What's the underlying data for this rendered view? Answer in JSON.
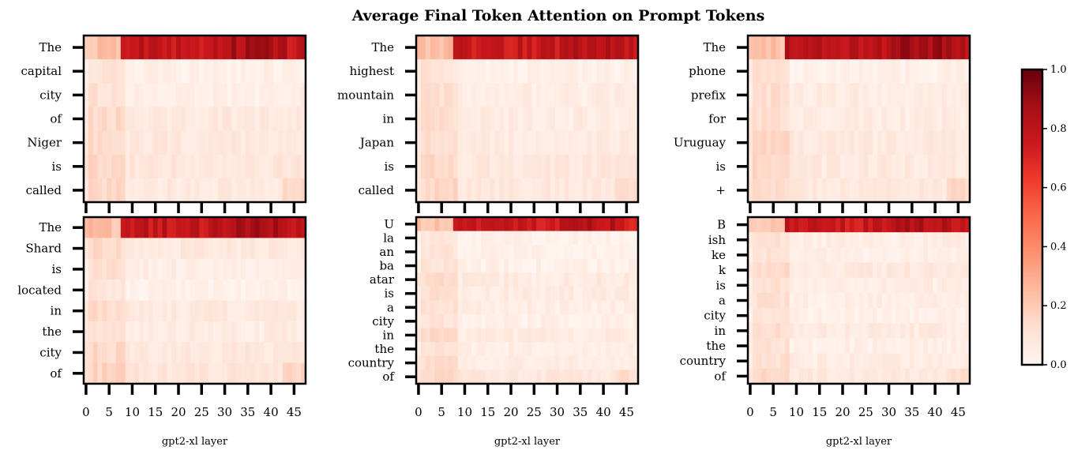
{
  "title": "Average Final Token Attention on Prompt Tokens",
  "colormap": {
    "name": "Reds",
    "stops": [
      "#fff5f0",
      "#fee0d2",
      "#fcbba1",
      "#fc9272",
      "#fb6a4a",
      "#ef3b2c",
      "#cb181d",
      "#a50f15",
      "#67000d"
    ]
  },
  "colorbar": {
    "range": [
      0.0,
      1.0
    ],
    "ticks": [
      "0.0",
      "0.2",
      "0.4",
      "0.6",
      "0.8",
      "1.0"
    ]
  },
  "chart_data": [
    {
      "type": "heatmap",
      "tokens": [
        "The",
        "capital",
        "city",
        "of",
        "Niger",
        "is",
        "called"
      ],
      "x_ticks": [
        "0",
        "5",
        "10",
        "15",
        "20",
        "25",
        "30",
        "35",
        "40",
        "45"
      ],
      "xlabel": "",
      "n_layers": 48,
      "row_means": [
        0.78,
        0.04,
        0.05,
        0.09,
        0.1,
        0.11,
        0.09
      ]
    },
    {
      "type": "heatmap",
      "tokens": [
        "The",
        "highest",
        "mountain",
        "in",
        "Japan",
        "is",
        "called"
      ],
      "x_ticks": [
        "0",
        "5",
        "10",
        "15",
        "20",
        "25",
        "30",
        "35",
        "40",
        "45"
      ],
      "xlabel": "",
      "n_layers": 48,
      "row_means": [
        0.76,
        0.04,
        0.06,
        0.07,
        0.08,
        0.1,
        0.1
      ]
    },
    {
      "type": "heatmap",
      "tokens": [
        "The",
        "phone",
        "prefix",
        "for",
        "Uruguay",
        "is",
        "+"
      ],
      "x_ticks": [
        "0",
        "5",
        "10",
        "15",
        "20",
        "25",
        "30",
        "35",
        "40",
        "45"
      ],
      "xlabel": "",
      "n_layers": 48,
      "row_means": [
        0.8,
        0.04,
        0.07,
        0.07,
        0.09,
        0.09,
        0.1
      ]
    },
    {
      "type": "heatmap",
      "tokens": [
        "The",
        "Shard",
        "is",
        "located",
        "in",
        "the",
        "city",
        "of"
      ],
      "x_ticks": [
        "0",
        "5",
        "10",
        "15",
        "20",
        "25",
        "30",
        "35",
        "40",
        "45"
      ],
      "xlabel": "gpt2-xl layer",
      "n_layers": 48,
      "row_means": [
        0.78,
        0.09,
        0.06,
        0.03,
        0.09,
        0.07,
        0.1,
        0.12
      ]
    },
    {
      "type": "heatmap",
      "tokens": [
        "U",
        "la",
        "an",
        "ba",
        "atar",
        "is",
        "a",
        "city",
        "in",
        "the",
        "country",
        "of"
      ],
      "x_ticks": [
        "0",
        "5",
        "10",
        "15",
        "20",
        "25",
        "30",
        "35",
        "40",
        "45"
      ],
      "xlabel": "gpt2-xl layer",
      "n_layers": 48,
      "row_means": [
        0.75,
        0.03,
        0.03,
        0.04,
        0.08,
        0.07,
        0.06,
        0.04,
        0.08,
        0.05,
        0.07,
        0.1
      ]
    },
    {
      "type": "heatmap",
      "tokens": [
        "B",
        "ish",
        "ke",
        "k",
        "is",
        "a",
        "city",
        "in",
        "the",
        "country",
        "of"
      ],
      "x_ticks": [
        "0",
        "5",
        "10",
        "15",
        "20",
        "25",
        "30",
        "35",
        "40",
        "45"
      ],
      "xlabel": "gpt2-xl layer",
      "n_layers": 48,
      "row_means": [
        0.76,
        0.05,
        0.05,
        0.09,
        0.06,
        0.06,
        0.04,
        0.08,
        0.05,
        0.07,
        0.1
      ]
    }
  ]
}
